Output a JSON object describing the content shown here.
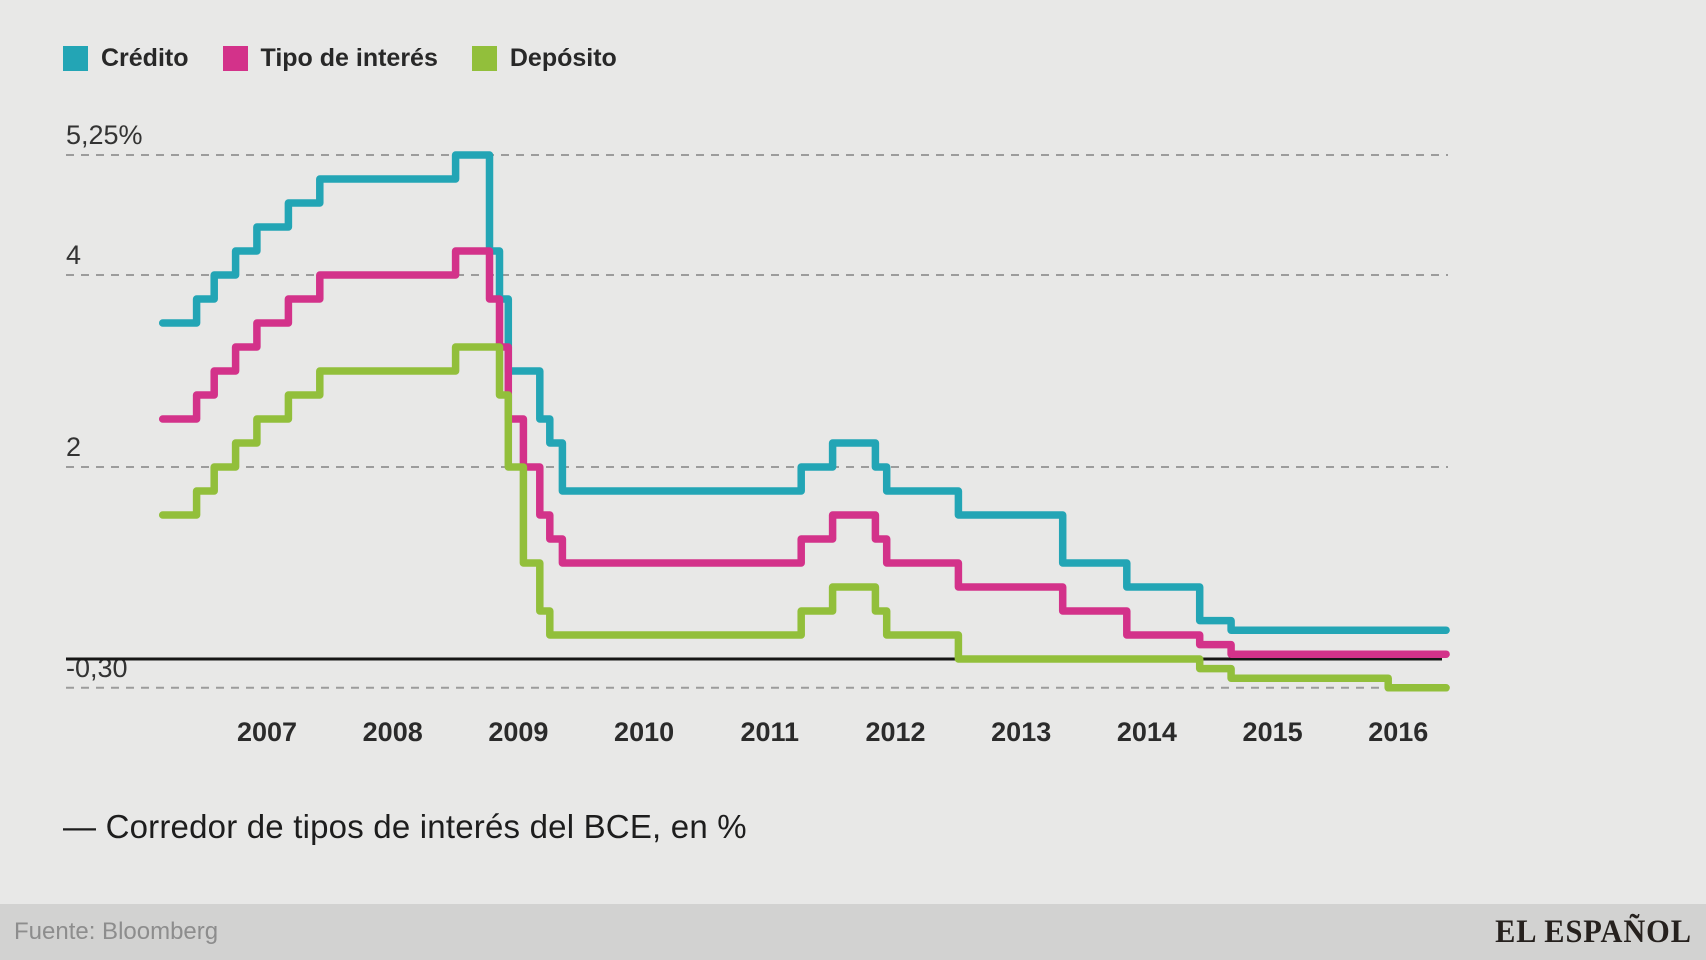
{
  "app": {
    "background": "#e8e8e7"
  },
  "legend": {
    "items": [
      {
        "label": "Crédito",
        "color": "#23a5b5"
      },
      {
        "label": "Tipo de interés",
        "color": "#d3328a"
      },
      {
        "label": "Depósito",
        "color": "#92bf3b"
      }
    ]
  },
  "chart_data": {
    "type": "line",
    "subtype": "step",
    "title": "— Corredor de tipos de interés del BCE, en %",
    "xlabel": "",
    "ylabel": "%",
    "x_range": [
      2006.17,
      2016.38
    ],
    "ylim": [
      -0.5,
      5.6
    ],
    "grid": "dashed-horizontal",
    "legend_position": "top-left",
    "x_ticks": [
      2007,
      2008,
      2009,
      2010,
      2011,
      2012,
      2013,
      2014,
      2015,
      2016
    ],
    "y_gridlines": [
      {
        "label": "5,25%",
        "value": 5.25
      },
      {
        "label": "4",
        "value": 4
      },
      {
        "label": "2",
        "value": 2
      },
      {
        "label": "-0,30",
        "value": -0.3
      }
    ],
    "zero_line_value": 0,
    "colors": {
      "grid": "#9c9c9c",
      "zero_line": "#161616"
    },
    "series": [
      {
        "name": "Crédito",
        "color": "#23a5b5",
        "step_points": [
          [
            2006.17,
            3.5
          ],
          [
            2006.44,
            3.75
          ],
          [
            2006.58,
            4.0
          ],
          [
            2006.75,
            4.25
          ],
          [
            2006.92,
            4.5
          ],
          [
            2007.17,
            4.75
          ],
          [
            2007.42,
            5.0
          ],
          [
            2008.5,
            5.25
          ],
          [
            2008.77,
            4.25
          ],
          [
            2008.85,
            3.75
          ],
          [
            2008.92,
            3.0
          ],
          [
            2009.17,
            2.5
          ],
          [
            2009.25,
            2.25
          ],
          [
            2009.35,
            1.75
          ],
          [
            2011.25,
            2.0
          ],
          [
            2011.5,
            2.25
          ],
          [
            2011.84,
            2.0
          ],
          [
            2011.93,
            1.75
          ],
          [
            2012.5,
            1.5
          ],
          [
            2013.33,
            1.0
          ],
          [
            2013.84,
            0.75
          ],
          [
            2014.42,
            0.4
          ],
          [
            2014.67,
            0.3
          ]
        ]
      },
      {
        "name": "Tipo de interés",
        "color": "#d3328a",
        "step_points": [
          [
            2006.17,
            2.5
          ],
          [
            2006.44,
            2.75
          ],
          [
            2006.58,
            3.0
          ],
          [
            2006.75,
            3.25
          ],
          [
            2006.92,
            3.5
          ],
          [
            2007.17,
            3.75
          ],
          [
            2007.42,
            4.0
          ],
          [
            2008.5,
            4.25
          ],
          [
            2008.77,
            3.75
          ],
          [
            2008.85,
            3.25
          ],
          [
            2008.92,
            2.5
          ],
          [
            2009.04,
            2.0
          ],
          [
            2009.17,
            1.5
          ],
          [
            2009.25,
            1.25
          ],
          [
            2009.35,
            1.0
          ],
          [
            2011.25,
            1.25
          ],
          [
            2011.5,
            1.5
          ],
          [
            2011.84,
            1.25
          ],
          [
            2011.93,
            1.0
          ],
          [
            2012.5,
            0.75
          ],
          [
            2013.33,
            0.5
          ],
          [
            2013.84,
            0.25
          ],
          [
            2014.42,
            0.15
          ],
          [
            2014.67,
            0.05
          ]
        ]
      },
      {
        "name": "Depósito",
        "color": "#92bf3b",
        "step_points": [
          [
            2006.17,
            1.5
          ],
          [
            2006.44,
            1.75
          ],
          [
            2006.58,
            2.0
          ],
          [
            2006.75,
            2.25
          ],
          [
            2006.92,
            2.5
          ],
          [
            2007.17,
            2.75
          ],
          [
            2007.42,
            3.0
          ],
          [
            2008.5,
            3.25
          ],
          [
            2008.85,
            2.75
          ],
          [
            2008.92,
            2.0
          ],
          [
            2009.04,
            1.0
          ],
          [
            2009.17,
            0.5
          ],
          [
            2009.25,
            0.25
          ],
          [
            2011.25,
            0.5
          ],
          [
            2011.5,
            0.75
          ],
          [
            2011.84,
            0.5
          ],
          [
            2011.93,
            0.25
          ],
          [
            2012.5,
            0.0
          ],
          [
            2014.42,
            -0.1
          ],
          [
            2014.67,
            -0.2
          ],
          [
            2015.92,
            -0.3
          ]
        ]
      }
    ]
  },
  "footer": {
    "source": "Fuente: Bloomberg",
    "brand": "EL ESPAÑOL"
  }
}
